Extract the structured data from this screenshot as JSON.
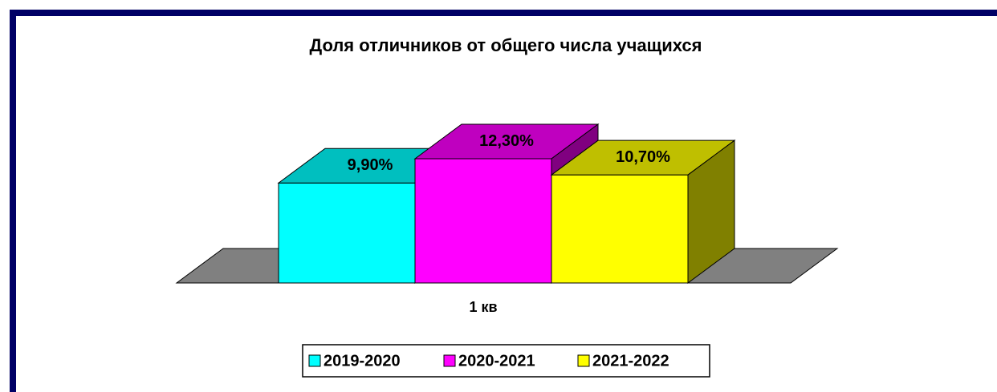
{
  "chart_data": {
    "type": "bar",
    "title": "Доля отличников от общего числа учащихся",
    "categories": [
      "1 кв"
    ],
    "series": [
      {
        "name": "2019-2020",
        "color": "#00ffff",
        "values": [
          9.9
        ],
        "value_labels": [
          "9,90%"
        ]
      },
      {
        "name": "2020-2021",
        "color": "#ff00ff",
        "values": [
          12.3
        ],
        "value_labels": [
          "12,30%"
        ]
      },
      {
        "name": "2021-2022",
        "color": "#ffff00",
        "values": [
          10.7
        ],
        "value_labels": [
          "10,70%"
        ]
      }
    ],
    "legend": "bottom"
  }
}
